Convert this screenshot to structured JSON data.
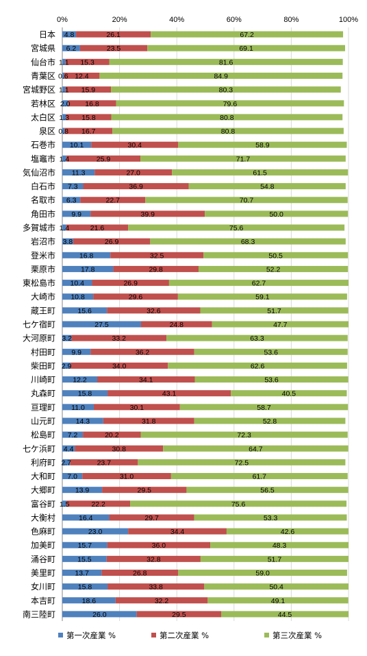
{
  "chart_data": {
    "type": "bar",
    "orientation": "horizontal",
    "stacked": true,
    "percent_stacked": true,
    "xlim": [
      0,
      100
    ],
    "x_ticks": [
      "0%",
      "20%",
      "40%",
      "60%",
      "80%",
      "100%"
    ],
    "grid": true,
    "legend_position": "bottom",
    "categories": [
      "日本",
      "宮城県",
      "仙台市",
      "青葉区",
      "宮城野区",
      "若林区",
      "太白区",
      "泉区",
      "石巻市",
      "塩竈市",
      "気仙沼市",
      "白石市",
      "名取市",
      "角田市",
      "多賀城市",
      "岩沼市",
      "登米市",
      "栗原市",
      "東松島市",
      "大崎市",
      "蔵王町",
      "七ケ宿町",
      "大河原町",
      "村田町",
      "柴田町",
      "川崎町",
      "丸森町",
      "亘理町",
      "山元町",
      "松島町",
      "七ケ浜町",
      "利府町",
      "大和町",
      "大郷町",
      "富谷町",
      "大衡村",
      "色麻町",
      "加美町",
      "涌谷町",
      "美里町",
      "女川町",
      "本吉町",
      "南三陸町"
    ],
    "series": [
      {
        "name": "第一次産業 %",
        "color": "#4F81BD",
        "values": [
          4.8,
          6.2,
          1.1,
          0.6,
          1.1,
          2.0,
          1.3,
          0.8,
          10.1,
          1.4,
          11.3,
          7.3,
          6.3,
          9.9,
          1.4,
          3.8,
          16.8,
          17.8,
          10.4,
          10.8,
          15.6,
          27.5,
          3.2,
          9.9,
          2.9,
          12.2,
          15.8,
          11.0,
          14.3,
          7.2,
          4.4,
          2.7,
          7.0,
          13.9,
          1.5,
          16.4,
          23.0,
          15.7,
          15.5,
          13.7,
          15.8,
          18.6,
          26.0
        ]
      },
      {
        "name": "第二次産業 %",
        "color": "#C0504D",
        "values": [
          26.1,
          23.5,
          15.3,
          12.4,
          15.9,
          16.8,
          15.8,
          16.7,
          30.4,
          25.9,
          27.0,
          36.9,
          22.7,
          39.9,
          21.6,
          26.9,
          32.5,
          29.8,
          26.9,
          29.6,
          32.6,
          24.8,
          33.2,
          36.2,
          34.0,
          34.1,
          43.1,
          30.1,
          31.8,
          20.2,
          30.8,
          23.7,
          31.0,
          29.5,
          22.2,
          29.7,
          34.4,
          36.0,
          32.8,
          26.8,
          33.8,
          32.2,
          29.5
        ]
      },
      {
        "name": "第三次産業 %",
        "color": "#9BBB59",
        "values": [
          67.2,
          69.1,
          81.6,
          84.9,
          80.3,
          79.6,
          80.8,
          80.8,
          58.9,
          71.7,
          61.5,
          54.8,
          70.7,
          50.0,
          75.6,
          68.3,
          50.5,
          52.2,
          62.7,
          59.1,
          51.7,
          47.7,
          63.3,
          53.6,
          62.6,
          53.6,
          40.5,
          58.7,
          52.8,
          72.3,
          64.7,
          72.5,
          61.7,
          56.5,
          75.6,
          53.3,
          42.6,
          48.3,
          51.7,
          59.0,
          50.4,
          49.1,
          44.5
        ]
      }
    ]
  }
}
